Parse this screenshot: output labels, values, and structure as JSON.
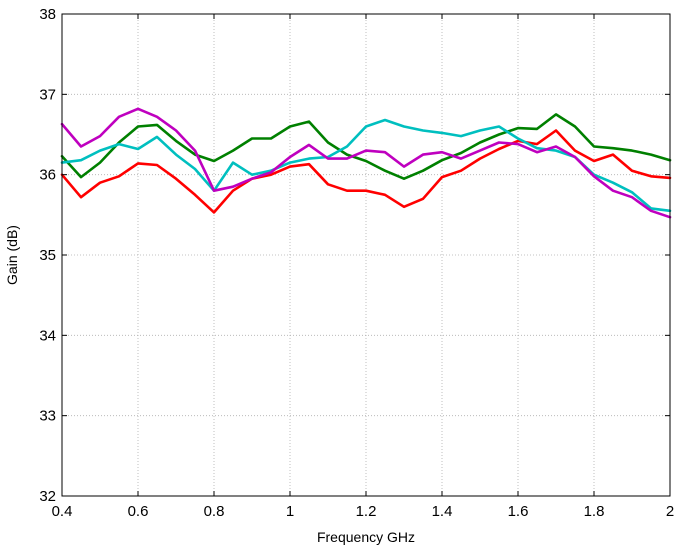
{
  "chart_data": {
    "type": "line",
    "title": "",
    "xlabel": "Frequency GHz",
    "ylabel": "Gain (dB)",
    "xlim": [
      0.4,
      2.0
    ],
    "ylim": [
      32,
      38
    ],
    "grid": true,
    "x_ticks": [
      "0.4",
      "0.6",
      "0.8",
      "1",
      "1.2",
      "1.4",
      "1.6",
      "1.8",
      "2"
    ],
    "y_ticks": [
      "32",
      "33",
      "34",
      "35",
      "36",
      "37",
      "38"
    ],
    "x": [
      0.4,
      0.45,
      0.5,
      0.55,
      0.6,
      0.65,
      0.7,
      0.75,
      0.8,
      0.85,
      0.9,
      0.95,
      1.0,
      1.05,
      1.1,
      1.15,
      1.2,
      1.25,
      1.3,
      1.35,
      1.4,
      1.45,
      1.5,
      1.55,
      1.6,
      1.65,
      1.7,
      1.75,
      1.8,
      1.85,
      1.9,
      1.95,
      2.0
    ],
    "series": [
      {
        "color": "#ff0000",
        "values": [
          36.0,
          35.72,
          35.9,
          35.98,
          36.14,
          36.12,
          35.95,
          35.75,
          35.53,
          35.8,
          35.95,
          36.0,
          36.1,
          36.13,
          35.88,
          35.8,
          35.8,
          35.75,
          35.6,
          35.7,
          35.97,
          36.05,
          36.2,
          36.32,
          36.42,
          36.38,
          36.55,
          36.3,
          36.17,
          36.25,
          36.05,
          35.98,
          35.96
        ]
      },
      {
        "color": "#008000",
        "values": [
          36.23,
          35.97,
          36.15,
          36.4,
          36.6,
          36.62,
          36.42,
          36.25,
          36.17,
          36.3,
          36.45,
          36.45,
          36.6,
          36.66,
          36.4,
          36.25,
          36.17,
          36.05,
          35.95,
          36.05,
          36.18,
          36.27,
          36.4,
          36.5,
          36.58,
          36.57,
          36.75,
          36.6,
          36.35,
          36.33,
          36.3,
          36.25,
          36.18
        ]
      },
      {
        "color": "#00bfbf",
        "values": [
          36.15,
          36.18,
          36.3,
          36.38,
          36.32,
          36.47,
          36.25,
          36.07,
          35.8,
          36.15,
          36.0,
          36.05,
          36.15,
          36.2,
          36.22,
          36.35,
          36.6,
          36.68,
          36.6,
          36.55,
          36.52,
          36.48,
          36.55,
          36.6,
          36.45,
          36.33,
          36.3,
          36.22,
          36.0,
          35.9,
          35.78,
          35.58,
          35.55
        ]
      },
      {
        "color": "#bf00bf",
        "values": [
          36.63,
          36.35,
          36.48,
          36.72,
          36.82,
          36.72,
          36.55,
          36.3,
          35.8,
          35.85,
          35.95,
          36.03,
          36.22,
          36.37,
          36.2,
          36.2,
          36.3,
          36.28,
          36.1,
          36.25,
          36.28,
          36.2,
          36.3,
          36.4,
          36.38,
          36.28,
          36.35,
          36.22,
          35.98,
          35.8,
          35.72,
          35.55,
          35.47
        ]
      }
    ]
  }
}
